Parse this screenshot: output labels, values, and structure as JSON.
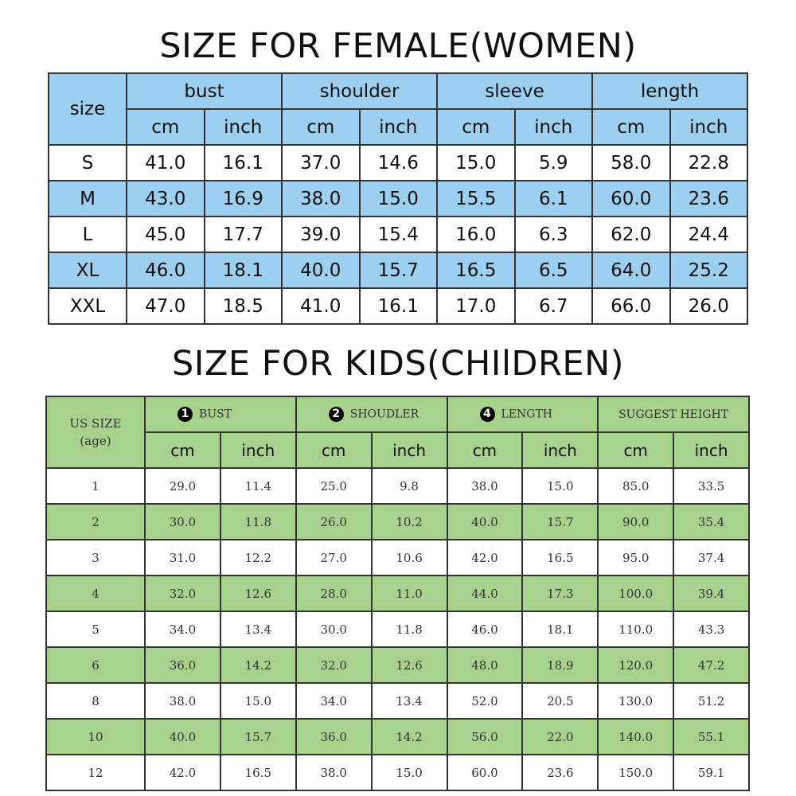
{
  "women": {
    "title": "SIZE FOR FEMALE(WOMEN)",
    "size_header": "size",
    "groups": [
      "bust",
      "shoulder",
      "sleeve",
      "length"
    ],
    "units": [
      "cm",
      "inch"
    ],
    "rows": [
      [
        "S",
        "41.0",
        "16.1",
        "37.0",
        "14.6",
        "15.0",
        "5.9",
        "58.0",
        "22.8"
      ],
      [
        "M",
        "43.0",
        "16.9",
        "38.0",
        "15.0",
        "15.5",
        "6.1",
        "60.0",
        "23.6"
      ],
      [
        "L",
        "45.0",
        "17.7",
        "39.0",
        "15.4",
        "16.0",
        "6.3",
        "62.0",
        "24.4"
      ],
      [
        "XL",
        "46.0",
        "18.1",
        "40.0",
        "15.7",
        "16.5",
        "6.5",
        "64.0",
        "25.2"
      ],
      [
        "XXL",
        "47.0",
        "18.5",
        "41.0",
        "16.1",
        "17.0",
        "6.7",
        "66.0",
        "26.0"
      ]
    ],
    "accent_color": "#9ccff0"
  },
  "kids": {
    "title": "SIZE FOR KIDS(CHIlDREN)",
    "size_header": "US SIZE",
    "size_subheader": "(age)",
    "groups": [
      {
        "icon": "1",
        "label": "BUST"
      },
      {
        "icon": "2",
        "label": "SHOUDLER"
      },
      {
        "icon": "4",
        "label": "LENGTH"
      },
      {
        "icon": "",
        "label": "SUGGEST HEIGHT"
      }
    ],
    "units": [
      "cm",
      "inch"
    ],
    "rows": [
      [
        "1",
        "29.0",
        "11.4",
        "25.0",
        "9.8",
        "38.0",
        "15.0",
        "85.0",
        "33.5"
      ],
      [
        "2",
        "30.0",
        "11.8",
        "26.0",
        "10.2",
        "40.0",
        "15.7",
        "90.0",
        "35.4"
      ],
      [
        "3",
        "31.0",
        "12.2",
        "27.0",
        "10.6",
        "42.0",
        "16.5",
        "95.0",
        "37.4"
      ],
      [
        "4",
        "32.0",
        "12.6",
        "28.0",
        "11.0",
        "44.0",
        "17.3",
        "100.0",
        "39.4"
      ],
      [
        "5",
        "34.0",
        "13.4",
        "30.0",
        "11.8",
        "46.0",
        "18.1",
        "110.0",
        "43.3"
      ],
      [
        "6",
        "36.0",
        "14.2",
        "32.0",
        "12.6",
        "48.0",
        "18.9",
        "120.0",
        "47.2"
      ],
      [
        "8",
        "38.0",
        "15.0",
        "34.0",
        "13.4",
        "52.0",
        "20.5",
        "130.0",
        "51.2"
      ],
      [
        "10",
        "40.0",
        "15.7",
        "36.0",
        "14.2",
        "56.0",
        "22.0",
        "140.0",
        "55.1"
      ],
      [
        "12",
        "42.0",
        "16.5",
        "38.0",
        "15.0",
        "60.0",
        "23.6",
        "150.0",
        "59.1"
      ]
    ],
    "accent_color": "#a9d18e"
  }
}
